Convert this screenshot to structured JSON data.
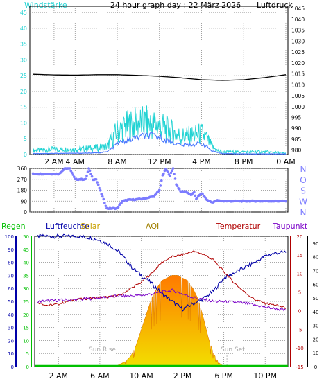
{
  "header": {
    "left_label": "Windstärke",
    "title": "24 hour graph day : 22 März 2026",
    "right_label": "Luftdruck"
  },
  "colors": {
    "wind": "#22d3d3",
    "gust": "#22d3d3",
    "wind_avg": "#4f7cff",
    "pressure": "#000000",
    "direction": "#7b7bff",
    "humidity": "#0000a8",
    "temperature": "#b00000",
    "dewpoint": "#7a00c8",
    "rain": "#00c000",
    "solar_top": "#ff7a00",
    "solar_bottom": "#f2df00",
    "sun_marker": "#bbbbbb"
  },
  "legend2": {
    "regen": "Regen",
    "luftfeuchte": "Luftfeuchte",
    "solar": "Solar",
    "aqi": "AQI",
    "temperatur": "Temperatur",
    "taupunkt": "Taupunkt"
  },
  "annotations": {
    "sunrise": "Sun Rise",
    "sunset": "Sun Set"
  },
  "chart_data": [
    {
      "type": "line",
      "title": "24 hour graph day : 22 März 2026",
      "x_ticks": [
        "2 AM",
        "4 AM",
        "8 AM",
        "12 PM",
        "4 PM",
        "8 PM",
        "0 AM"
      ],
      "x_tick_hours": [
        2,
        4,
        8,
        12,
        16,
        20,
        24
      ],
      "xlim": [
        -0.3,
        24.2
      ],
      "y_left": {
        "label": "Windstärke",
        "ticks": [
          0,
          5,
          10,
          15,
          20,
          25,
          30,
          35,
          40,
          45
        ],
        "ylim": [
          0,
          47
        ]
      },
      "y_right": {
        "label": "Luftdruck",
        "ticks": [
          980,
          985,
          990,
          995,
          1000,
          1005,
          1010,
          1015,
          1020,
          1025,
          1030,
          1035,
          1040,
          1045
        ],
        "ylim": [
          978,
          1046
        ]
      },
      "series": [
        {
          "name": "Luftdruck",
          "axis": "right",
          "hours": [
            0,
            2,
            4,
            6,
            8,
            10,
            12,
            14,
            16,
            18,
            20,
            22,
            24
          ],
          "values": [
            1014.8,
            1014.5,
            1014.4,
            1014.6,
            1014.6,
            1014.3,
            1013.9,
            1013.2,
            1012.3,
            1012.0,
            1012.3,
            1013.3,
            1014.6
          ]
        },
        {
          "name": "Windstärke (Böen)",
          "axis": "left",
          "hours": [
            0,
            2,
            4,
            6,
            7,
            7.5,
            8,
            9,
            10,
            11,
            12,
            13,
            14,
            15,
            16,
            16.5,
            17,
            17.5,
            18,
            20,
            22,
            24
          ],
          "values": [
            1.5,
            2,
            2,
            2.5,
            3,
            6,
            9,
            11,
            12,
            12,
            11,
            9,
            7,
            7,
            8,
            6,
            3,
            1.5,
            1,
            1,
            1,
            0.5
          ]
        },
        {
          "name": "Windstärke (Mittel)",
          "axis": "left",
          "hours": [
            0,
            4,
            6,
            7,
            7.5,
            8,
            9,
            10,
            11,
            12,
            13,
            14,
            15,
            16,
            16.5,
            17,
            18,
            20,
            24
          ],
          "values": [
            0.3,
            0.4,
            0.5,
            0.8,
            2,
            3.5,
            4.5,
            5.5,
            6,
            5.5,
            4,
            3,
            3,
            3.5,
            2.5,
            1,
            0.3,
            0.2,
            0.2
          ]
        }
      ]
    },
    {
      "type": "scatter",
      "series_name": "Windrichtung",
      "x_ticks": [],
      "xlim": [
        -0.3,
        24.2
      ],
      "y_left_ticks": [
        0,
        90,
        180,
        270,
        360
      ],
      "y_right_ticks": [
        "N",
        "W",
        "S",
        "O",
        "N"
      ],
      "ylim": [
        0,
        360
      ],
      "hours": [
        0,
        2,
        2.5,
        3,
        3.5,
        4,
        5,
        5.3,
        5.7,
        6,
        7,
        7.2,
        7.5,
        8,
        8.5,
        9,
        10,
        10.5,
        11,
        11.5,
        12,
        12.3,
        12.6,
        13,
        13.3,
        13.6,
        14,
        14.5,
        15,
        15.3,
        15.5,
        16,
        16.5,
        17,
        17.5,
        18,
        19,
        20,
        21,
        22,
        23,
        24
      ],
      "values": [
        315,
        315,
        315,
        360,
        360,
        270,
        270,
        360,
        270,
        270,
        30,
        30,
        30,
        30,
        90,
        100,
        105,
        110,
        120,
        130,
        180,
        300,
        355,
        300,
        360,
        230,
        170,
        170,
        140,
        160,
        110,
        155,
        100,
        80,
        95,
        90,
        90,
        90,
        90,
        90,
        90,
        90
      ]
    },
    {
      "type": "line",
      "x_ticks": [
        "2 AM",
        "6 AM",
        "10 AM",
        "2 PM",
        "6 PM",
        "10 PM"
      ],
      "x_tick_hours": [
        2,
        6,
        10,
        14,
        18,
        22
      ],
      "xlim": [
        -0.3,
        24.2
      ],
      "axes": {
        "regen": {
          "ticks": [
            0,
            10,
            20,
            30,
            40,
            50,
            60,
            70,
            80,
            90,
            100
          ],
          "ylim": [
            0,
            100
          ]
        },
        "humidity": {
          "ticks": [
            0,
            5,
            10,
            15,
            20,
            25,
            30,
            35,
            40,
            45,
            50
          ],
          "ylim": [
            0,
            50
          ]
        },
        "temp_right": {
          "ticks": [
            -15,
            -10,
            -5,
            0,
            5,
            10,
            15,
            20
          ],
          "ylim": [
            -15,
            20
          ]
        },
        "dew_right": {
          "ticks": [
            0,
            10,
            20,
            30,
            40,
            50,
            60,
            70,
            80,
            90
          ],
          "ylim": [
            0,
            95
          ]
        }
      },
      "series": [
        {
          "name": "Luftfeuchte",
          "axis": "regen",
          "hours": [
            0,
            1,
            2,
            3,
            4,
            5,
            6,
            7,
            8,
            9,
            10,
            11,
            12,
            13,
            14,
            15,
            16,
            17,
            18,
            19,
            20,
            21,
            22,
            23,
            24
          ],
          "values": [
            100,
            100,
            100,
            100,
            100,
            99,
            97,
            93,
            87,
            77,
            70,
            64,
            56,
            50,
            44,
            48,
            52,
            58,
            68,
            72,
            76,
            80,
            85,
            87,
            88
          ]
        },
        {
          "name": "Temperatur",
          "axis": "temp_right",
          "hours": [
            0,
            1,
            2,
            3,
            4,
            5,
            6,
            7,
            8,
            9,
            10,
            11,
            12,
            13,
            14,
            15,
            16,
            17,
            18,
            19,
            20,
            21,
            22,
            23,
            24
          ],
          "values": [
            2.2,
            1.4,
            1.8,
            2.6,
            3.1,
            3.3,
            3.6,
            3.7,
            4.2,
            6.0,
            7.6,
            10.0,
            13.0,
            14.5,
            15.0,
            16.0,
            15.2,
            13.6,
            10.5,
            7.5,
            5.0,
            3.0,
            2.0,
            1.5,
            0.8
          ]
        },
        {
          "name": "Taupunkt",
          "axis": "temp_right",
          "hours": [
            0,
            2,
            4,
            6,
            8,
            9,
            10,
            11,
            12,
            13,
            14,
            15,
            16,
            17,
            18,
            19,
            20,
            21,
            22,
            23,
            24
          ],
          "values": [
            2.5,
            2.8,
            3.0,
            3.5,
            4.0,
            4.0,
            4.1,
            4.5,
            5.0,
            5.5,
            4.5,
            3.6,
            3.0,
            2.5,
            2.4,
            2.3,
            2.0,
            1.5,
            1.0,
            0.5,
            0.0
          ]
        },
        {
          "name": "Solar",
          "axis": "humidity",
          "hours": [
            7.5,
            8.5,
            9.0,
            9.5,
            10.0,
            10.5,
            11.0,
            11.5,
            12.0,
            12.5,
            13.0,
            13.5,
            14.0,
            14.5,
            15.0,
            15.5,
            16.0,
            16.5,
            17.0,
            17.5,
            18.0
          ],
          "values": [
            0,
            2,
            4,
            8,
            14,
            20,
            26,
            30,
            33,
            34,
            35,
            35,
            34,
            33,
            30,
            26,
            19,
            11,
            5,
            1.5,
            0
          ]
        },
        {
          "name": "Regen",
          "axis": "regen",
          "hours": [
            0,
            24
          ],
          "values": [
            0,
            0
          ]
        }
      ],
      "sunrise_hour": 6.1,
      "sunset_hour": 18.3
    }
  ]
}
